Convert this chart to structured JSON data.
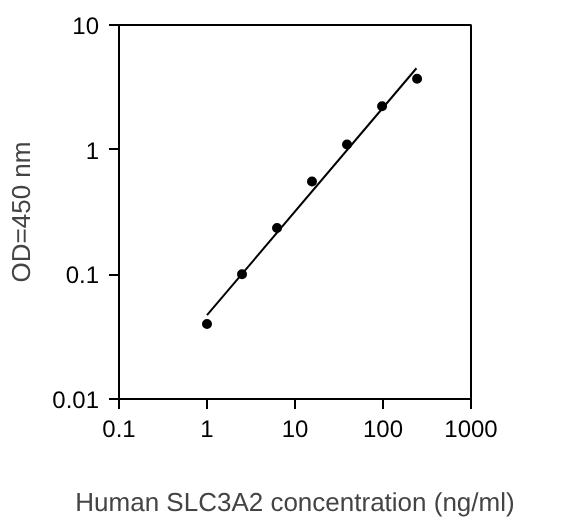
{
  "chart_data": {
    "type": "scatter",
    "xlabel": "Human SLC3A2 concentration (ng/ml)",
    "ylabel": "OD=450 nm",
    "log": "xy",
    "grid": false,
    "xlim": [
      0.1,
      1000
    ],
    "xticks": [
      0.1,
      1,
      10,
      100,
      1000
    ],
    "ylim": [
      0.01,
      10
    ],
    "yticks": [
      0.01,
      0.1,
      1,
      10
    ],
    "series": [
      {
        "marker": "circle",
        "color": "#000000",
        "x": [
          1,
          2.5,
          6.25,
          15.6,
          39,
          97.6,
          244
        ],
        "values": [
          0.04,
          0.1,
          0.235,
          0.555,
          1.1,
          2.23,
          3.7
        ]
      },
      {
        "type": "line",
        "color": "#000000",
        "x": [
          1,
          240
        ],
        "values": [
          0.047,
          4.5
        ]
      }
    ]
  }
}
